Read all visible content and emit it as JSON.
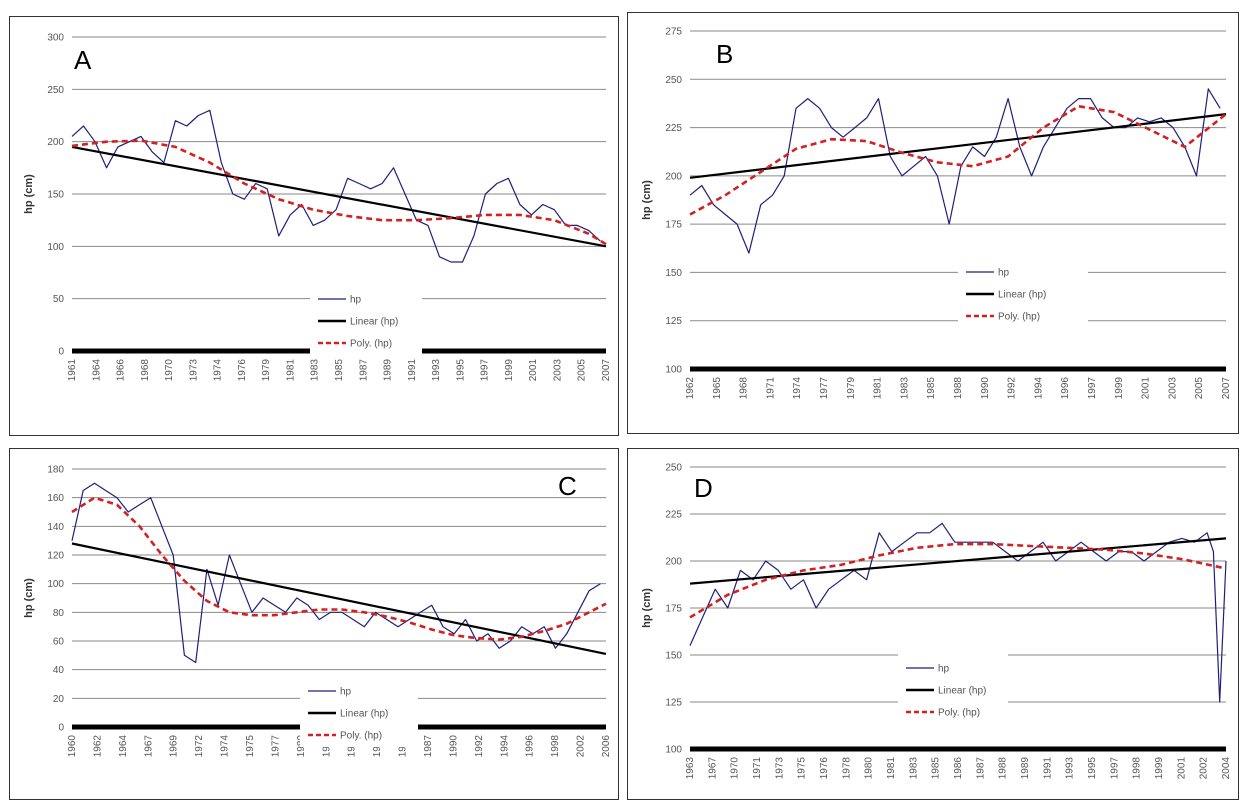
{
  "chart_data": [
    {
      "type": "line",
      "panel_label": "A",
      "ylabel": "hp (cm)",
      "ylim": [
        0,
        300
      ],
      "yticks": [
        0,
        50,
        100,
        150,
        200,
        250,
        300
      ],
      "xlim": [
        1961,
        2007.5
      ],
      "xticks": [
        "1961",
        "1964",
        "1966",
        "1968",
        "1970",
        "1973",
        "1974",
        "1976",
        "1979",
        "1981",
        "1983",
        "1985",
        "1987",
        "1989",
        "1991",
        "1993",
        "1995",
        "1997",
        "1999",
        "2001",
        "2003",
        "2005",
        "2007"
      ],
      "grid": true,
      "legend_placement": "bottom-center",
      "series": [
        {
          "name": "hp",
          "color": "#1f1f7a",
          "style": "solid",
          "x": [
            1961,
            1962,
            1963,
            1964,
            1965,
            1966,
            1967,
            1968,
            1969,
            1970,
            1971,
            1972,
            1973,
            1974,
            1975,
            1976,
            1977,
            1978,
            1979,
            1980,
            1981,
            1982,
            1983,
            1984,
            1985,
            1986,
            1987,
            1988,
            1989,
            1990,
            1991,
            1992,
            1993,
            1994,
            1995,
            1996,
            1997,
            1998,
            1999,
            2000,
            2001,
            2002,
            2003,
            2004,
            2005,
            2006,
            2007
          ],
          "y": [
            205,
            215,
            200,
            175,
            195,
            200,
            205,
            190,
            180,
            220,
            215,
            225,
            230,
            180,
            150,
            145,
            160,
            155,
            110,
            130,
            140,
            120,
            125,
            135,
            165,
            160,
            155,
            160,
            175,
            150,
            125,
            120,
            90,
            85,
            85,
            110,
            150,
            160,
            165,
            140,
            130,
            140,
            135,
            120,
            120,
            115,
            105
          ]
        },
        {
          "name": "Linear (hp)",
          "color": "#000000",
          "style": "solid",
          "x": [
            1961,
            2007.5
          ],
          "y": [
            195,
            100
          ]
        },
        {
          "name": "Poly. (hp)",
          "color": "#d42020",
          "style": "dashed",
          "x": [
            1961,
            1964,
            1967,
            1970,
            1973,
            1976,
            1979,
            1982,
            1985,
            1988,
            1991,
            1994,
            1997,
            2000,
            2003,
            2006,
            2007.5
          ],
          "y": [
            196,
            200,
            201,
            195,
            180,
            160,
            145,
            135,
            129,
            125,
            125,
            127,
            130,
            130,
            125,
            112,
            102
          ]
        }
      ]
    },
    {
      "type": "line",
      "panel_label": "B",
      "ylabel": "hp (cm)",
      "ylim": [
        100,
        275
      ],
      "yticks": [
        100,
        125,
        150,
        175,
        200,
        225,
        250,
        275
      ],
      "xlim": [
        1962,
        2007.5
      ],
      "xticks": [
        "1962",
        "1965",
        "1968",
        "1971",
        "1974",
        "1977",
        "1979",
        "1981",
        "1983",
        "1985",
        "1988",
        "1990",
        "1992",
        "1994",
        "1996",
        "1997",
        "1999",
        "2001",
        "2003",
        "2005",
        "2007"
      ],
      "grid": true,
      "legend_placement": "center",
      "series": [
        {
          "name": "hp",
          "color": "#1f1f7a",
          "style": "solid",
          "x": [
            1962,
            1963,
            1964,
            1965,
            1966,
            1967,
            1968,
            1969,
            1970,
            1971,
            1972,
            1973,
            1974,
            1975,
            1976,
            1977,
            1978,
            1979,
            1980,
            1981,
            1982,
            1983,
            1984,
            1985,
            1986,
            1987,
            1988,
            1989,
            1990,
            1991,
            1992,
            1993,
            1994,
            1995,
            1996,
            1997,
            1998,
            1999,
            2000,
            2001,
            2002,
            2003,
            2004,
            2005,
            2006,
            2007
          ],
          "y": [
            190,
            195,
            185,
            180,
            175,
            160,
            185,
            190,
            200,
            235,
            240,
            235,
            225,
            220,
            225,
            230,
            240,
            210,
            200,
            205,
            210,
            200,
            175,
            205,
            215,
            210,
            220,
            240,
            215,
            200,
            215,
            225,
            235,
            240,
            240,
            230,
            225,
            225,
            230,
            228,
            230,
            225,
            215,
            200,
            245,
            235
          ]
        },
        {
          "name": "Linear (hp)",
          "color": "#000000",
          "style": "solid",
          "x": [
            1962,
            2007.5
          ],
          "y": [
            199,
            232
          ]
        },
        {
          "name": "Poly. (hp)",
          "color": "#d42020",
          "style": "dashed",
          "x": [
            1962,
            1965,
            1968,
            1971,
            1974,
            1977,
            1980,
            1983,
            1986,
            1989,
            1992,
            1995,
            1998,
            2001,
            2004,
            2007.5
          ],
          "y": [
            180,
            190,
            202,
            214,
            219,
            218,
            212,
            207,
            205,
            210,
            225,
            236,
            233,
            224,
            215,
            232
          ]
        }
      ]
    },
    {
      "type": "line",
      "panel_label": "C",
      "ylabel": "hp (cm)",
      "ylim": [
        0,
        180
      ],
      "yticks": [
        0,
        20,
        40,
        60,
        80,
        100,
        120,
        140,
        160,
        180
      ],
      "xlim": [
        1960,
        2007.5
      ],
      "xticks": [
        "1960",
        "1962",
        "1964",
        "1967",
        "1969",
        "1972",
        "1974",
        "1975",
        "1977",
        "1980",
        "1981",
        "1982",
        "1984",
        "1986",
        "1987",
        "1990",
        "1992",
        "1994",
        "1996",
        "1998",
        "2002",
        "2006"
      ],
      "grid": true,
      "legend_placement": "bottom-center",
      "series": [
        {
          "name": "hp",
          "color": "#1f1f7a",
          "style": "solid",
          "x": [
            1960,
            1961,
            1962,
            1963,
            1964,
            1965,
            1966,
            1967,
            1968,
            1969,
            1970,
            1971,
            1972,
            1973,
            1974,
            1975,
            1976,
            1977,
            1978,
            1979,
            1980,
            1981,
            1982,
            1983,
            1984,
            1985,
            1986,
            1987,
            1988,
            1989,
            1990,
            1991,
            1992,
            1993,
            1994,
            1995,
            1996,
            1997,
            1998,
            1999,
            2000,
            2001,
            2002,
            2003,
            2004,
            2005,
            2006,
            2007
          ],
          "y": [
            130,
            165,
            170,
            165,
            160,
            150,
            155,
            160,
            140,
            120,
            50,
            45,
            110,
            85,
            120,
            100,
            80,
            90,
            85,
            80,
            90,
            85,
            75,
            80,
            80,
            75,
            70,
            80,
            75,
            70,
            75,
            80,
            85,
            70,
            65,
            75,
            60,
            65,
            55,
            60,
            70,
            65,
            70,
            55,
            65,
            80,
            95,
            100
          ]
        },
        {
          "name": "Linear (hp)",
          "color": "#000000",
          "style": "solid",
          "x": [
            1960,
            2007.5
          ],
          "y": [
            128,
            51
          ]
        },
        {
          "name": "Poly. (hp)",
          "color": "#d42020",
          "style": "dashed",
          "x": [
            1960,
            1962,
            1964,
            1966,
            1968,
            1970,
            1972,
            1974,
            1976,
            1978,
            1980,
            1982,
            1984,
            1986,
            1988,
            1990,
            1992,
            1994,
            1996,
            1998,
            2000,
            2002,
            2004,
            2006,
            2007.5
          ],
          "y": [
            150,
            160,
            155,
            140,
            120,
            102,
            88,
            80,
            78,
            78,
            80,
            82,
            82,
            80,
            77,
            73,
            68,
            64,
            62,
            61,
            63,
            67,
            72,
            80,
            86
          ]
        }
      ]
    },
    {
      "type": "line",
      "panel_label": "D",
      "ylabel": "hp (cm)",
      "ylim": [
        100,
        250
      ],
      "yticks": [
        100,
        125,
        150,
        175,
        200,
        225,
        250
      ],
      "xlim": [
        1963,
        2005.5
      ],
      "xticks": [
        "1963",
        "1967",
        "1970",
        "1971",
        "1973",
        "1975",
        "1976",
        "1978",
        "1980",
        "1981",
        "1983",
        "1985",
        "1986",
        "1987",
        "1988",
        "1989",
        "1991",
        "1993",
        "1995",
        "1997",
        "1998",
        "1999",
        "2001",
        "2002",
        "2004"
      ],
      "grid": true,
      "legend_placement": "center",
      "series": [
        {
          "name": "hp",
          "color": "#1f1f7a",
          "style": "solid",
          "x": [
            1963,
            1964,
            1965,
            1966,
            1967,
            1968,
            1969,
            1970,
            1971,
            1972,
            1973,
            1974,
            1975,
            1976,
            1977,
            1978,
            1979,
            1980,
            1981,
            1982,
            1983,
            1984,
            1985,
            1986,
            1987,
            1988,
            1989,
            1990,
            1991,
            1992,
            1993,
            1994,
            1995,
            1996,
            1997,
            1998,
            1999,
            2000,
            2001,
            2002,
            2003,
            2004,
            2004.5,
            2005,
            2005.5
          ],
          "y": [
            155,
            170,
            185,
            175,
            195,
            190,
            200,
            195,
            185,
            190,
            175,
            185,
            190,
            195,
            190,
            215,
            205,
            210,
            215,
            215,
            220,
            210,
            210,
            210,
            210,
            205,
            200,
            205,
            210,
            200,
            205,
            210,
            205,
            200,
            205,
            205,
            200,
            205,
            210,
            212,
            210,
            215,
            205,
            125,
            200
          ]
        },
        {
          "name": "Linear (hp)",
          "color": "#000000",
          "style": "solid",
          "x": [
            1963,
            2005.5
          ],
          "y": [
            188,
            212
          ]
        },
        {
          "name": "Poly. (hp)",
          "color": "#d42020",
          "style": "dashed",
          "x": [
            1963,
            1966,
            1969,
            1972,
            1975,
            1978,
            1981,
            1984,
            1987,
            1990,
            1993,
            1996,
            1999,
            2002,
            2005.5
          ],
          "y": [
            170,
            182,
            190,
            195,
            198,
            203,
            207,
            209,
            209,
            208,
            207,
            206,
            204,
            201,
            196
          ]
        }
      ]
    }
  ]
}
